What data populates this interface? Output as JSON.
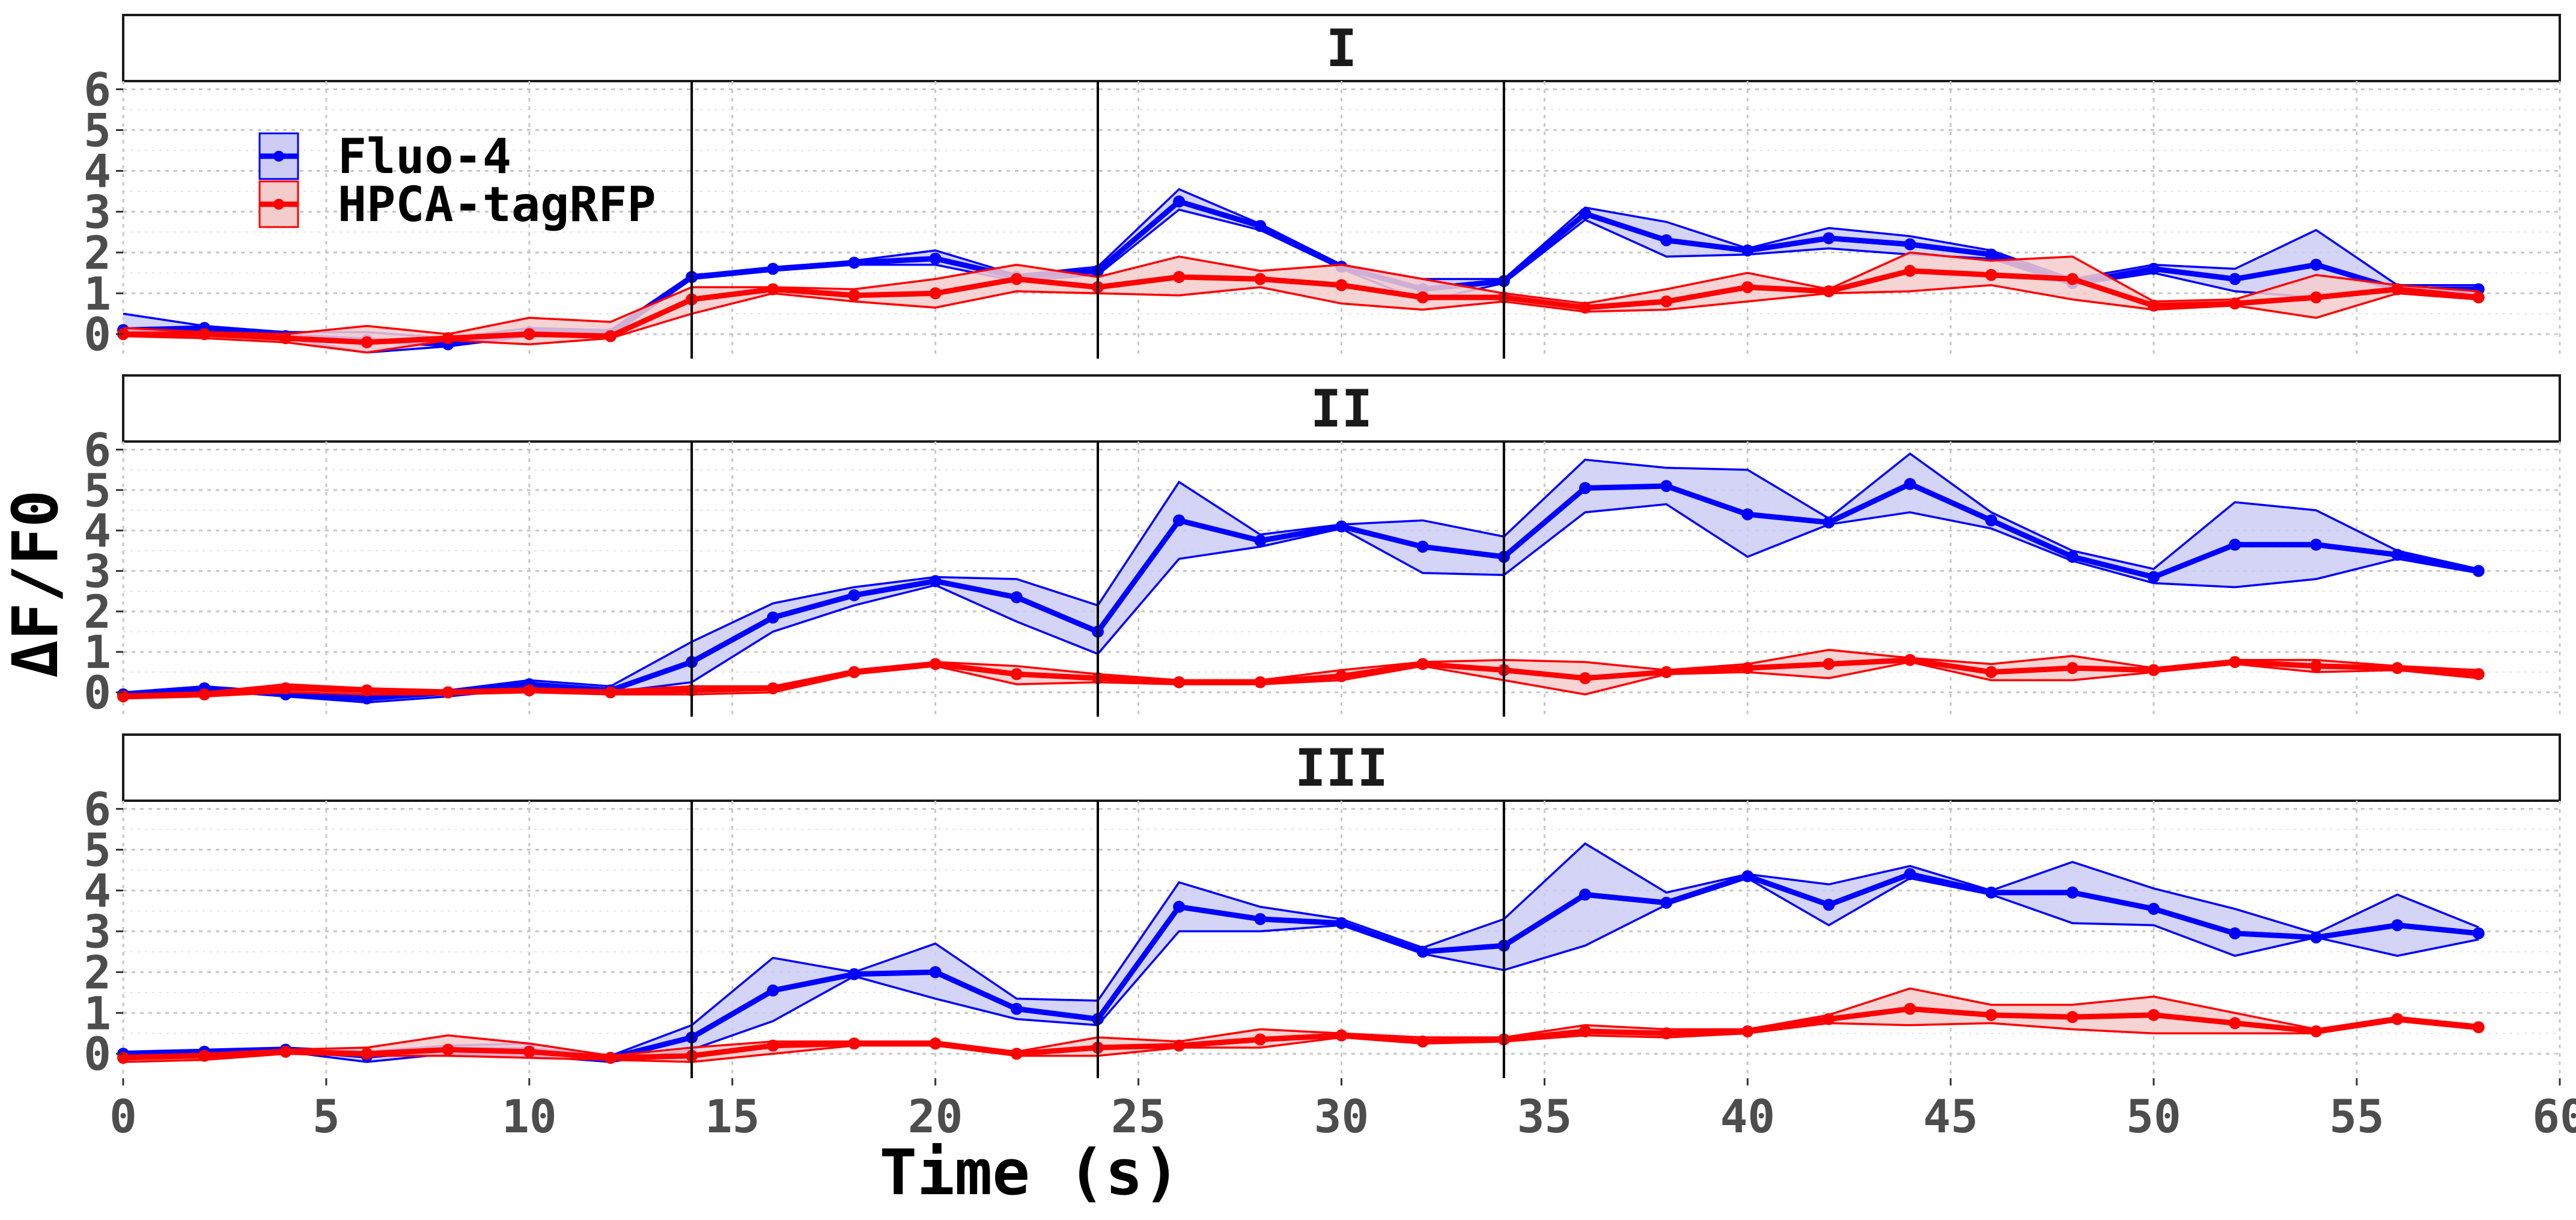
{
  "chart_data": {
    "type": "line",
    "xlabel": "Time (s)",
    "ylabel": "ΔF/F0",
    "xlim": [
      0,
      60
    ],
    "ylim": [
      -0.6,
      6.2
    ],
    "x_ticks": [
      0,
      5,
      10,
      15,
      20,
      25,
      30,
      35,
      40,
      45,
      50,
      55,
      60
    ],
    "x_tick_labels": [
      "0",
      "5",
      "10",
      "15",
      "20",
      "25",
      "30",
      "35",
      "40",
      "45",
      "50",
      "55",
      "60"
    ],
    "y_ticks": [
      0,
      1,
      2,
      3,
      4,
      5,
      6
    ],
    "y_tick_labels": [
      "0",
      "1",
      "2",
      "3",
      "4",
      "5",
      "6"
    ],
    "vlines": [
      14,
      24,
      34
    ],
    "grid": true,
    "legend_position": "top-left",
    "colors": {
      "Fluo-4": "#0000ff",
      "HPCA-tagRFP": "#ff0000",
      "Fluo-4_fill": "#ccccf5",
      "HPCA-tagRFP_fill": "#f5cccc"
    },
    "x": [
      0,
      2,
      4,
      6,
      8,
      10,
      12,
      14,
      16,
      18,
      20,
      22,
      24,
      26,
      28,
      30,
      32,
      34,
      36,
      38,
      40,
      42,
      44,
      46,
      48,
      50,
      52,
      54,
      56,
      58
    ],
    "panels": [
      {
        "label": "I",
        "series": [
          {
            "name": "Fluo-4",
            "values": [
              0.1,
              0.15,
              -0.05,
              -0.15,
              -0.25,
              0.05,
              0.0,
              1.4,
              1.6,
              1.75,
              1.85,
              1.4,
              1.55,
              3.25,
              2.65,
              1.65,
              1.1,
              1.3,
              2.95,
              2.3,
              2.05,
              2.35,
              2.2,
              1.95,
              1.25,
              1.6,
              1.35,
              1.7,
              1.1,
              1.1
            ],
            "upper": [
              0.5,
              0.2,
              0.05,
              0.05,
              -0.1,
              0.15,
              0.1,
              1.45,
              1.6,
              1.8,
              2.05,
              1.45,
              1.65,
              3.55,
              2.7,
              1.7,
              1.35,
              1.35,
              3.1,
              2.75,
              2.1,
              2.6,
              2.4,
              2.05,
              1.35,
              1.7,
              1.6,
              2.55,
              1.2,
              1.2
            ],
            "lower": [
              0.0,
              0.05,
              -0.1,
              -0.45,
              -0.3,
              -0.05,
              -0.05,
              1.35,
              1.55,
              1.7,
              1.7,
              1.3,
              1.45,
              3.05,
              2.55,
              1.6,
              0.8,
              1.25,
              2.8,
              1.9,
              1.95,
              2.1,
              1.95,
              1.85,
              1.2,
              1.5,
              1.05,
              0.9,
              1.05,
              1.0
            ]
          },
          {
            "name": "HPCA-tagRFP",
            "values": [
              0.0,
              0.0,
              -0.1,
              -0.2,
              -0.1,
              0.0,
              -0.05,
              0.85,
              1.1,
              0.95,
              1.0,
              1.35,
              1.15,
              1.4,
              1.35,
              1.2,
              0.9,
              0.9,
              0.65,
              0.8,
              1.15,
              1.05,
              1.55,
              1.45,
              1.35,
              0.7,
              0.75,
              0.9,
              1.1,
              0.9
            ],
            "upper": [
              0.15,
              0.05,
              0.0,
              0.2,
              0.0,
              0.4,
              0.3,
              1.15,
              1.15,
              1.1,
              1.35,
              1.7,
              1.4,
              1.9,
              1.55,
              1.7,
              1.35,
              1.0,
              0.75,
              1.1,
              1.5,
              1.1,
              2.0,
              1.8,
              1.9,
              0.8,
              0.85,
              1.45,
              1.2,
              1.05
            ],
            "lower": [
              -0.05,
              -0.1,
              -0.2,
              -0.45,
              -0.15,
              -0.25,
              -0.1,
              0.5,
              1.0,
              0.8,
              0.65,
              1.05,
              1.0,
              0.95,
              1.15,
              0.75,
              0.6,
              0.8,
              0.55,
              0.6,
              0.8,
              1.0,
              1.05,
              1.2,
              0.85,
              0.6,
              0.7,
              0.4,
              1.0,
              0.85
            ]
          }
        ]
      },
      {
        "label": "II",
        "series": [
          {
            "name": "Fluo-4",
            "values": [
              -0.05,
              0.1,
              -0.05,
              -0.15,
              0.0,
              0.2,
              0.05,
              0.75,
              1.85,
              2.4,
              2.75,
              2.35,
              1.5,
              4.25,
              3.75,
              4.1,
              3.6,
              3.35,
              5.05,
              5.1,
              4.4,
              4.2,
              5.15,
              4.25,
              3.35,
              2.85,
              3.65,
              3.65,
              3.4,
              3.0
            ],
            "upper": [
              0.0,
              0.15,
              0.0,
              -0.05,
              0.05,
              0.3,
              0.15,
              1.25,
              2.2,
              2.6,
              2.85,
              2.8,
              2.15,
              5.2,
              3.9,
              4.15,
              4.25,
              3.85,
              5.75,
              5.55,
              5.5,
              4.3,
              5.9,
              4.45,
              3.5,
              3.05,
              4.7,
              4.5,
              3.5,
              3.05
            ],
            "lower": [
              -0.1,
              0.05,
              -0.1,
              -0.25,
              -0.1,
              0.1,
              0.0,
              0.25,
              1.5,
              2.15,
              2.65,
              1.75,
              0.95,
              3.3,
              3.6,
              4.05,
              2.95,
              2.9,
              4.45,
              4.65,
              3.35,
              4.15,
              4.45,
              4.05,
              3.25,
              2.7,
              2.6,
              2.8,
              3.3,
              2.95
            ]
          },
          {
            "name": "HPCA-tagRFP",
            "values": [
              -0.1,
              -0.05,
              0.1,
              0.05,
              0.0,
              0.05,
              0.0,
              0.05,
              0.1,
              0.5,
              0.7,
              0.45,
              0.35,
              0.25,
              0.25,
              0.4,
              0.7,
              0.55,
              0.35,
              0.5,
              0.6,
              0.7,
              0.8,
              0.5,
              0.6,
              0.55,
              0.75,
              0.65,
              0.6,
              0.45
            ],
            "upper": [
              -0.05,
              0.0,
              0.2,
              0.1,
              0.05,
              0.1,
              0.05,
              0.15,
              0.15,
              0.55,
              0.75,
              0.65,
              0.45,
              0.3,
              0.3,
              0.55,
              0.75,
              0.8,
              0.75,
              0.55,
              0.7,
              1.05,
              0.85,
              0.7,
              0.9,
              0.6,
              0.8,
              0.8,
              0.65,
              0.55
            ],
            "lower": [
              -0.15,
              -0.1,
              0.0,
              -0.05,
              -0.05,
              0.0,
              -0.05,
              -0.05,
              0.0,
              0.45,
              0.65,
              0.2,
              0.25,
              0.2,
              0.2,
              0.3,
              0.65,
              0.3,
              -0.05,
              0.45,
              0.5,
              0.35,
              0.75,
              0.3,
              0.3,
              0.5,
              0.7,
              0.5,
              0.55,
              0.35
            ]
          }
        ]
      },
      {
        "label": "III",
        "series": [
          {
            "name": "Fluo-4",
            "values": [
              0.0,
              0.05,
              0.1,
              -0.05,
              0.1,
              0.1,
              -0.1,
              0.4,
              1.55,
              1.95,
              2.0,
              1.1,
              0.85,
              3.6,
              3.3,
              3.2,
              2.5,
              2.65,
              3.9,
              3.7,
              4.35,
              3.65,
              4.4,
              3.95,
              3.95,
              3.55,
              2.95,
              2.85,
              3.15,
              2.95
            ],
            "upper": [
              0.05,
              0.1,
              0.15,
              0.05,
              0.2,
              0.25,
              -0.05,
              0.7,
              2.35,
              2.0,
              2.7,
              1.35,
              1.3,
              4.2,
              3.6,
              3.3,
              2.6,
              3.3,
              5.15,
              3.95,
              4.4,
              4.15,
              4.6,
              4.0,
              4.7,
              4.05,
              3.55,
              2.95,
              3.9,
              3.1
            ],
            "lower": [
              -0.05,
              0.0,
              0.05,
              -0.2,
              0.0,
              -0.05,
              -0.2,
              0.1,
              0.8,
              1.9,
              1.35,
              0.85,
              0.7,
              3.0,
              3.0,
              3.15,
              2.45,
              2.05,
              2.65,
              3.65,
              4.3,
              3.15,
              4.3,
              3.9,
              3.2,
              3.15,
              2.4,
              2.85,
              2.4,
              2.8
            ]
          },
          {
            "name": "HPCA-tagRFP",
            "values": [
              -0.1,
              -0.05,
              0.05,
              0.0,
              0.1,
              0.05,
              -0.1,
              -0.05,
              0.2,
              0.25,
              0.25,
              0.0,
              0.15,
              0.2,
              0.35,
              0.45,
              0.3,
              0.35,
              0.55,
              0.5,
              0.55,
              0.85,
              1.1,
              0.95,
              0.9,
              0.95,
              0.75,
              0.55,
              0.85,
              0.65
            ],
            "upper": [
              -0.05,
              0.0,
              0.1,
              0.15,
              0.45,
              0.25,
              -0.05,
              0.15,
              0.3,
              0.3,
              0.3,
              0.05,
              0.4,
              0.3,
              0.6,
              0.5,
              0.4,
              0.4,
              0.7,
              0.6,
              0.6,
              0.95,
              1.6,
              1.2,
              1.2,
              1.4,
              1.0,
              0.6,
              0.9,
              0.7
            ],
            "lower": [
              -0.2,
              -0.15,
              0.0,
              -0.05,
              -0.05,
              -0.1,
              -0.15,
              -0.2,
              0.0,
              0.2,
              0.2,
              -0.05,
              -0.05,
              0.15,
              0.15,
              0.4,
              0.25,
              0.3,
              0.45,
              0.4,
              0.5,
              0.75,
              0.7,
              0.75,
              0.6,
              0.5,
              0.5,
              0.5,
              0.8,
              0.6
            ]
          }
        ]
      }
    ]
  }
}
